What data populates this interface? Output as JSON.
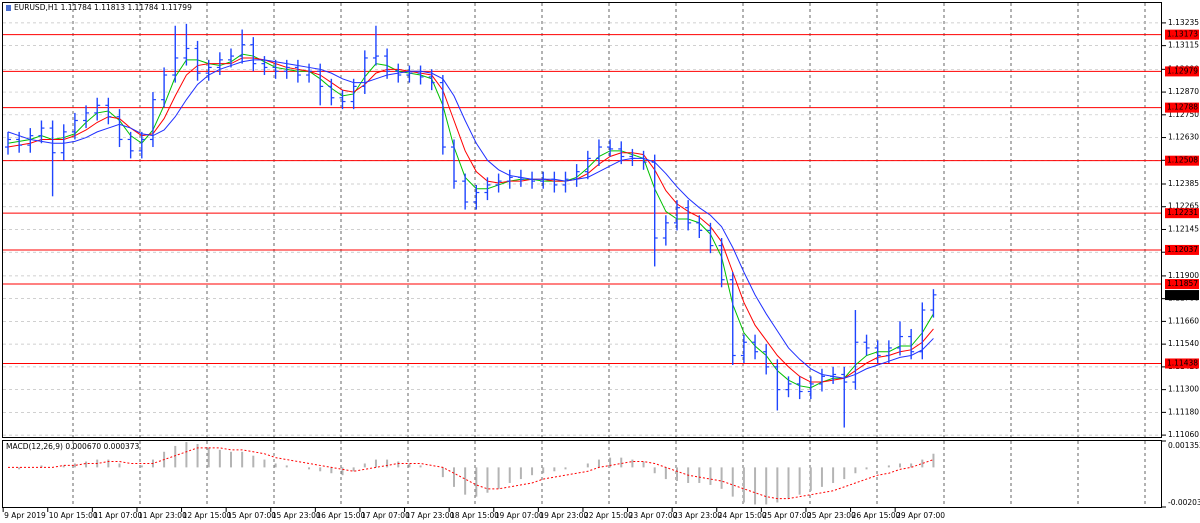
{
  "chart_data": [
    {
      "type": "ohlc",
      "title": "EURUSD,H1  1.11784 1.11813 1.11784 1.11799",
      "categories": [
        null,
        "9 Apr 2019",
        null,
        null,
        null,
        "10 Apr 15:00",
        null,
        null,
        null,
        "11 Apr 07:00",
        null,
        null,
        null,
        "11 Apr 23:00",
        null,
        null,
        null,
        "12 Apr 15:00",
        null,
        null,
        null,
        "15 Apr 07:00",
        null,
        null,
        null,
        "15 Apr 23:00",
        null,
        null,
        null,
        "16 Apr 15:00",
        null,
        null,
        null,
        "17 Apr 07:00",
        null,
        null,
        null,
        "17 Apr 23:00",
        null,
        null,
        null,
        "18 Apr 15:00",
        null,
        null,
        null,
        "19 Apr 07:00",
        null,
        null,
        null,
        "19 Apr 23:00",
        null,
        null,
        null,
        "22 Apr 15:00",
        null,
        null,
        null,
        "23 Apr 07:00",
        null,
        null,
        null,
        "23 Apr 23:00",
        null,
        null,
        null,
        "24 Apr 15:00",
        null,
        null,
        null,
        "25 Apr 07:00",
        null,
        null,
        null,
        "25 Apr 23:00",
        null,
        null,
        null,
        "26 Apr 15:00",
        null,
        null,
        null,
        "29 Apr 07:00",
        null,
        null
      ],
      "open": [
        1.1258,
        1.1262,
        1.1259,
        1.1264,
        1.1268,
        1.1255,
        1.1266,
        1.1272,
        1.1276,
        1.128,
        1.1274,
        1.1262,
        1.1256,
        1.1262,
        1.1283,
        1.1296,
        1.1305,
        1.131,
        1.1297,
        1.13,
        1.1304,
        1.1306,
        1.1312,
        1.1302,
        1.13,
        1.1298,
        1.13,
        1.1296,
        1.1298,
        1.129,
        1.1284,
        1.1282,
        1.129,
        1.1305,
        1.1306,
        1.1298,
        1.1296,
        1.1297,
        1.1295,
        1.1292,
        1.1258,
        1.124,
        1.1229,
        1.1234,
        1.1238,
        1.124,
        1.1242,
        1.1241,
        1.124,
        1.1241,
        1.1238,
        1.1241,
        1.1245,
        1.1252,
        1.1258,
        1.1257,
        1.1253,
        1.1252,
        1.125,
        1.121,
        1.1218,
        1.1226,
        1.1218,
        1.1214,
        1.1206,
        1.1188,
        1.1148,
        1.1155,
        1.115,
        1.1142,
        1.113,
        1.1133,
        1.1129,
        1.1133,
        1.1137,
        1.1138,
        1.1134,
        1.1155,
        1.1152,
        1.1148,
        1.1152,
        1.1158,
        1.115,
        1.1172
      ],
      "high": [
        1.1266,
        1.1266,
        1.1268,
        1.1272,
        1.1272,
        1.127,
        1.1276,
        1.128,
        1.1284,
        1.1284,
        1.1278,
        1.1266,
        1.1266,
        1.1287,
        1.13,
        1.1322,
        1.1323,
        1.1314,
        1.1304,
        1.1308,
        1.131,
        1.132,
        1.1316,
        1.1306,
        1.1304,
        1.1304,
        1.1304,
        1.1302,
        1.1302,
        1.1294,
        1.1288,
        1.1294,
        1.1309,
        1.1322,
        1.131,
        1.1302,
        1.1301,
        1.1301,
        1.1299,
        1.1296,
        1.1262,
        1.1244,
        1.1238,
        1.1242,
        1.1244,
        1.1246,
        1.1246,
        1.1245,
        1.1245,
        1.1245,
        1.1245,
        1.1249,
        1.1256,
        1.1262,
        1.1262,
        1.1261,
        1.1257,
        1.1256,
        1.1254,
        1.1222,
        1.123,
        1.123,
        1.1222,
        1.1218,
        1.121,
        1.1192,
        1.1159,
        1.1159,
        1.1154,
        1.1146,
        1.1137,
        1.1137,
        1.1137,
        1.1141,
        1.1142,
        1.1142,
        1.1172,
        1.1159,
        1.1156,
        1.1156,
        1.1166,
        1.1162,
        1.1176,
        1.1183
      ],
      "low": [
        1.1254,
        1.1255,
        1.1255,
        1.126,
        1.1232,
        1.1251,
        1.1262,
        1.1268,
        1.1272,
        1.127,
        1.1258,
        1.1252,
        1.1252,
        1.1258,
        1.1279,
        1.1292,
        1.1301,
        1.1293,
        1.1293,
        1.1296,
        1.13,
        1.1302,
        1.1298,
        1.1296,
        1.1294,
        1.1294,
        1.1292,
        1.1292,
        1.128,
        1.128,
        1.1278,
        1.1278,
        1.1286,
        1.1301,
        1.1294,
        1.1292,
        1.1292,
        1.1291,
        1.1288,
        1.1254,
        1.1236,
        1.1225,
        1.1225,
        1.123,
        1.1234,
        1.1236,
        1.1237,
        1.1236,
        1.1236,
        1.1234,
        1.1234,
        1.1237,
        1.1241,
        1.1248,
        1.1253,
        1.1249,
        1.1248,
        1.1246,
        1.1195,
        1.1206,
        1.1214,
        1.1214,
        1.121,
        1.1202,
        1.1184,
        1.1143,
        1.1144,
        1.1146,
        1.1138,
        1.1119,
        1.1126,
        1.1125,
        1.1125,
        1.1129,
        1.1133,
        1.111,
        1.113,
        1.1148,
        1.1144,
        1.1144,
        1.1148,
        1.1146,
        1.1146,
        1.1168
      ],
      "close": [
        1.1262,
        1.1259,
        1.1264,
        1.1268,
        1.1255,
        1.1266,
        1.1272,
        1.1276,
        1.128,
        1.1274,
        1.1262,
        1.1256,
        1.1262,
        1.1283,
        1.1296,
        1.1305,
        1.131,
        1.1297,
        1.13,
        1.1304,
        1.1306,
        1.1312,
        1.1302,
        1.13,
        1.1298,
        1.13,
        1.1296,
        1.1298,
        1.129,
        1.1284,
        1.1282,
        1.129,
        1.1305,
        1.1306,
        1.1298,
        1.1296,
        1.1297,
        1.1295,
        1.1292,
        1.1258,
        1.124,
        1.1229,
        1.1234,
        1.1238,
        1.124,
        1.1242,
        1.1241,
        1.124,
        1.1241,
        1.1238,
        1.1241,
        1.1245,
        1.1252,
        1.1258,
        1.1257,
        1.1253,
        1.1252,
        1.125,
        1.121,
        1.1218,
        1.1226,
        1.1218,
        1.1214,
        1.1206,
        1.1188,
        1.1148,
        1.1155,
        1.115,
        1.1142,
        1.113,
        1.1133,
        1.1129,
        1.1133,
        1.1137,
        1.1138,
        1.1134,
        1.1155,
        1.1152,
        1.1148,
        1.1152,
        1.1158,
        1.115,
        1.1172,
        1.118
      ],
      "color": "#1f45ff",
      "lines": [
        {
          "color": "#00c000",
          "values": [
            1.126,
            1.1261,
            1.1262,
            1.1264,
            1.1262,
            1.1263,
            1.1265,
            1.1271,
            1.1276,
            1.1277,
            1.1272,
            1.1264,
            1.126,
            1.1267,
            1.128,
            1.1295,
            1.1304,
            1.1304,
            1.1302,
            1.1301,
            1.1303,
            1.1307,
            1.1306,
            1.1303,
            1.13,
            1.1299,
            1.1298,
            1.1298,
            1.1294,
            1.1289,
            1.1285,
            1.1286,
            1.1295,
            1.1302,
            1.1301,
            1.1298,
            1.1297,
            1.1296,
            1.1294,
            1.128,
            1.1258,
            1.1242,
            1.1236,
            1.1236,
            1.1238,
            1.124,
            1.1241,
            1.1241,
            1.124,
            1.124,
            1.124,
            1.1242,
            1.1247,
            1.1253,
            1.1256,
            1.1256,
            1.1254,
            1.1252,
            1.1236,
            1.1224,
            1.122,
            1.122,
            1.1218,
            1.1212,
            1.12,
            1.1175,
            1.116,
            1.1153,
            1.1148,
            1.114,
            1.1135,
            1.1132,
            1.1131,
            1.1134,
            1.1136,
            1.1136,
            1.1143,
            1.1148,
            1.115,
            1.115,
            1.1153,
            1.1153,
            1.116,
            1.117
          ]
        },
        {
          "color": "#ff0000",
          "values": [
            1.1258,
            1.1259,
            1.126,
            1.1262,
            1.1262,
            1.1262,
            1.1264,
            1.1267,
            1.1271,
            1.1274,
            1.1273,
            1.1268,
            1.1264,
            1.1265,
            1.1273,
            1.1285,
            1.1296,
            1.1301,
            1.1302,
            1.1302,
            1.1302,
            1.1305,
            1.1305,
            1.1304,
            1.1302,
            1.13,
            1.1299,
            1.1298,
            1.1296,
            1.1292,
            1.1288,
            1.1287,
            1.1291,
            1.1297,
            1.1299,
            1.1299,
            1.1298,
            1.1297,
            1.1296,
            1.1288,
            1.1272,
            1.1256,
            1.1245,
            1.124,
            1.1239,
            1.124,
            1.124,
            1.1241,
            1.1241,
            1.124,
            1.124,
            1.1241,
            1.1244,
            1.1249,
            1.1253,
            1.1255,
            1.1255,
            1.1254,
            1.1246,
            1.1235,
            1.1228,
            1.1224,
            1.1221,
            1.1216,
            1.1208,
            1.1192,
            1.1176,
            1.1164,
            1.1156,
            1.1148,
            1.1142,
            1.1137,
            1.1134,
            1.1134,
            1.1135,
            1.1136,
            1.114,
            1.1144,
            1.1147,
            1.1148,
            1.115,
            1.1151,
            1.1155,
            1.1162
          ]
        },
        {
          "color": "#1f2fff",
          "values": [
            1.1266,
            1.1264,
            1.1262,
            1.1261,
            1.126,
            1.126,
            1.1261,
            1.1263,
            1.1266,
            1.1268,
            1.127,
            1.1268,
            1.1265,
            1.1264,
            1.1267,
            1.1274,
            1.1283,
            1.1291,
            1.1296,
            1.1299,
            1.1301,
            1.1303,
            1.1304,
            1.1304,
            1.1303,
            1.1302,
            1.1301,
            1.13,
            1.1299,
            1.1297,
            1.1294,
            1.1292,
            1.1292,
            1.1294,
            1.1296,
            1.1297,
            1.1298,
            1.1298,
            1.1297,
            1.1294,
            1.1285,
            1.1272,
            1.126,
            1.1251,
            1.1246,
            1.1243,
            1.1242,
            1.1241,
            1.1241,
            1.1241,
            1.124,
            1.1241,
            1.1242,
            1.1245,
            1.1248,
            1.1251,
            1.1252,
            1.1252,
            1.125,
            1.1244,
            1.1237,
            1.1231,
            1.1226,
            1.1222,
            1.1216,
            1.1205,
            1.1192,
            1.118,
            1.117,
            1.1161,
            1.1152,
            1.1146,
            1.1141,
            1.1138,
            1.1137,
            1.1136,
            1.1138,
            1.1141,
            1.1143,
            1.1145,
            1.1147,
            1.1148,
            1.1151,
            1.1157
          ]
        }
      ],
      "levels": [
        1.13173,
        1.12979,
        1.12788,
        1.12508,
        1.12231,
        1.12037,
        1.11857,
        1.11438
      ],
      "level_color": "#ff0000",
      "last_price": 1.11799,
      "ylim": [
        1.1105,
        1.1334
      ],
      "yticks": [
        1.13235,
        1.13115,
        {
          "value": 1.1299,
          "label": "1.12990"
        },
        {
          "value": 1.1287,
          "label": "1.12870"
        },
        {
          "value": 1.1275,
          "label": "1.12750"
        },
        {
          "value": 1.1263,
          "label": "1.12630"
        },
        {
          "value": 1.1251,
          "label": "1.12510"
        },
        1.12385,
        1.12265,
        1.12145,
        1.12025,
        {
          "value": 1.119,
          "label": "1.11900"
        },
        {
          "value": 1.1178,
          "label": "1.11780"
        },
        {
          "value": 1.1166,
          "label": "1.11660"
        },
        {
          "value": 1.1154,
          "label": "1.11540"
        },
        {
          "value": 1.1142,
          "label": "1.11420"
        },
        {
          "value": 1.113,
          "label": "1.11300"
        },
        {
          "value": 1.1118,
          "label": "1.11180"
        },
        {
          "value": 1.1106,
          "label": "1.11060"
        }
      ],
      "grid": true
    },
    {
      "type": "macd",
      "title": "MACD(12,26,9) 0.000670 0.000373",
      "values": [
        0.0,
        -0.0001,
        0.0,
        0.0001,
        0.0,
        0.0001,
        0.0002,
        0.0003,
        0.0004,
        0.0004,
        0.0002,
        0.0,
        0.0001,
        0.0004,
        0.0008,
        0.0011,
        0.0013,
        0.0012,
        0.001,
        0.0009,
        0.0008,
        0.0008,
        0.0006,
        0.0004,
        0.0002,
        0.0001,
        0.0,
        -0.0001,
        -0.0002,
        -0.0003,
        -0.0004,
        -0.0002,
        0.0002,
        0.0004,
        0.0004,
        0.0003,
        0.0002,
        0.0001,
        0.0,
        -0.0005,
        -0.001,
        -0.0014,
        -0.0015,
        -0.0013,
        -0.0011,
        -0.0008,
        -0.0006,
        -0.0004,
        -0.0003,
        -0.0002,
        -0.0001,
        0.0,
        0.0002,
        0.0004,
        0.0005,
        0.0005,
        0.0004,
        0.0003,
        -0.0003,
        -0.0006,
        -0.0007,
        -0.0008,
        -0.0008,
        -0.0009,
        -0.0011,
        -0.0015,
        -0.0018,
        -0.0019,
        -0.0019,
        -0.0018,
        -0.0016,
        -0.0014,
        -0.0012,
        -0.001,
        -0.0008,
        -0.0006,
        -0.0003,
        -0.0001,
        0.0,
        0.0001,
        0.0002,
        0.0002,
        0.0004,
        0.0007
      ],
      "signal": [
        0.0,
        0.0,
        0.0,
        0.0,
        0.0,
        0.0001,
        0.0001,
        0.0002,
        0.0002,
        0.0003,
        0.0003,
        0.0002,
        0.0002,
        0.0002,
        0.0004,
        0.0006,
        0.0008,
        0.001,
        0.001,
        0.001,
        0.0009,
        0.0009,
        0.0008,
        0.0007,
        0.0005,
        0.0004,
        0.0003,
        0.0002,
        0.0001,
        0.0,
        -0.0001,
        -0.0002,
        -0.0001,
        0.0,
        0.0001,
        0.0002,
        0.0002,
        0.0002,
        0.0001,
        0.0,
        -0.0003,
        -0.0006,
        -0.0009,
        -0.0011,
        -0.0011,
        -0.001,
        -0.0009,
        -0.0008,
        -0.0006,
        -0.0005,
        -0.0004,
        -0.0003,
        -0.0002,
        0.0,
        0.0001,
        0.0002,
        0.0003,
        0.0003,
        0.0002,
        0.0,
        -0.0002,
        -0.0004,
        -0.0005,
        -0.0006,
        -0.0007,
        -0.0009,
        -0.0011,
        -0.0013,
        -0.0015,
        -0.0016,
        -0.0016,
        -0.0015,
        -0.0014,
        -0.0013,
        -0.0012,
        -0.001,
        -0.0008,
        -0.0006,
        -0.0004,
        -0.0003,
        -0.0001,
        0.0,
        0.0002,
        0.0004
      ],
      "color": "#b4b4b4",
      "signal_color": "#ff0000",
      "ylim": [
        -0.002032,
        0.001353
      ],
      "yticks": [
        0.001353,
        -0.002032
      ]
    }
  ]
}
